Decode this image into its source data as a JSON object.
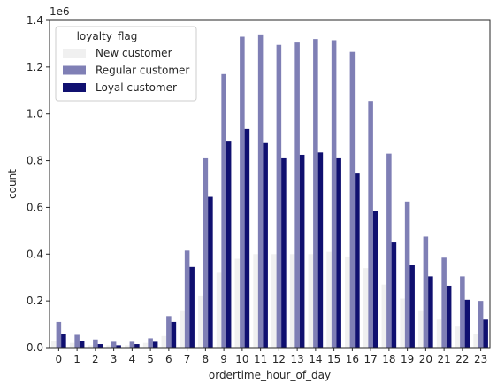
{
  "chart_data": {
    "type": "bar",
    "xlabel": "ordertime_hour_of_day",
    "ylabel": "count",
    "y_scale_label": "1e6",
    "ylim": [
      0,
      1.4
    ],
    "y_ticks": [
      "0.0",
      "0.2",
      "0.4",
      "0.6",
      "0.8",
      "1.0",
      "1.2",
      "1.4"
    ],
    "y_tick_values": [
      0,
      0.2,
      0.4,
      0.6,
      0.8,
      1.0,
      1.2,
      1.4
    ],
    "categories": [
      "0",
      "1",
      "2",
      "3",
      "4",
      "5",
      "6",
      "7",
      "8",
      "9",
      "10",
      "11",
      "12",
      "13",
      "14",
      "15",
      "16",
      "17",
      "18",
      "19",
      "20",
      "21",
      "22",
      "23"
    ],
    "legend": {
      "title": "loyalty_flag",
      "placement": "top-left"
    },
    "grid": false,
    "series": [
      {
        "name": "New customer",
        "color": "#f0f0f0",
        "values": [
          0.03,
          0.02,
          0.01,
          0.01,
          0.01,
          0.02,
          0.05,
          0.16,
          0.22,
          0.32,
          0.38,
          0.4,
          0.4,
          0.4,
          0.4,
          0.41,
          0.39,
          0.34,
          0.27,
          0.21,
          0.16,
          0.12,
          0.09,
          0.06
        ]
      },
      {
        "name": "Regular customer",
        "color": "#7f7fb5",
        "values": [
          0.11,
          0.055,
          0.035,
          0.025,
          0.025,
          0.04,
          0.135,
          0.415,
          0.81,
          1.17,
          1.33,
          1.34,
          1.295,
          1.305,
          1.32,
          1.315,
          1.265,
          1.055,
          0.83,
          0.625,
          0.475,
          0.385,
          0.305,
          0.2
        ]
      },
      {
        "name": "Loyal customer",
        "color": "#101070",
        "values": [
          0.06,
          0.03,
          0.015,
          0.01,
          0.015,
          0.025,
          0.11,
          0.345,
          0.645,
          0.885,
          0.935,
          0.875,
          0.81,
          0.825,
          0.835,
          0.81,
          0.745,
          0.585,
          0.45,
          0.355,
          0.305,
          0.265,
          0.205,
          0.12
        ]
      }
    ]
  }
}
